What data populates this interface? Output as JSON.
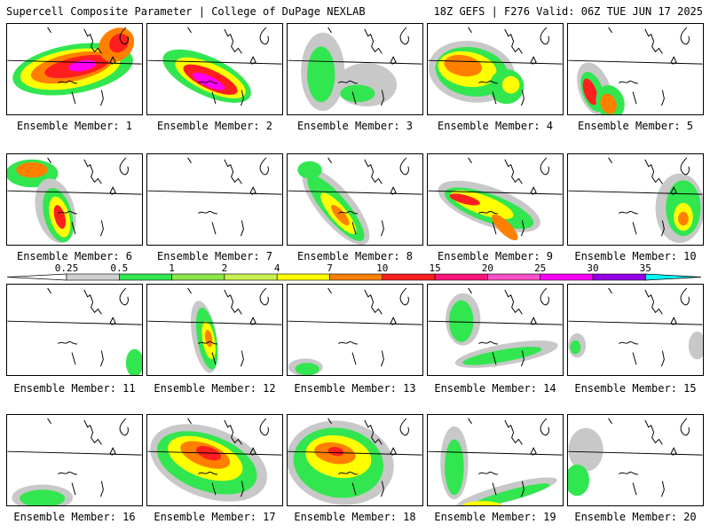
{
  "header": {
    "title_left": "Supercell Composite Parameter | College of DuPage NEXLAB",
    "title_right": "18Z GEFS | F276 Valid: 06Z TUE JUN 17 2025"
  },
  "colorbar": {
    "labels": [
      "0.25",
      "0.5",
      "1",
      "2",
      "4",
      "7",
      "10",
      "15",
      "20",
      "25",
      "30",
      "35"
    ],
    "colors": [
      "#d0d0d0",
      "#32e650",
      "#8ee64a",
      "#c9f050",
      "#ffff00",
      "#ff8000",
      "#ff1e1e",
      "#ff1478",
      "#ff50c8",
      "#ff00ff",
      "#9600e6",
      "#b450dc",
      "#00ffff"
    ]
  },
  "colors": {
    "light_gray": "#c8c8c8",
    "green": "#32e650",
    "lime": "#8ee64a",
    "yellow_green": "#c9f050",
    "yellow": "#ffff00",
    "orange": "#ff8000",
    "red": "#ff1e1e",
    "pink": "#ff1478",
    "magenta": "#ff00ff",
    "purple": "#9600e6"
  },
  "panels": [
    {
      "label": "Ensemble Member: 1",
      "intensity": 5
    },
    {
      "label": "Ensemble Member: 2",
      "intensity": 5
    },
    {
      "label": "Ensemble Member: 3",
      "intensity": 1
    },
    {
      "label": "Ensemble Member: 4",
      "intensity": 3
    },
    {
      "label": "Ensemble Member: 5",
      "intensity": 3
    },
    {
      "label": "Ensemble Member: 6",
      "intensity": 4
    },
    {
      "label": "Ensemble Member: 7",
      "intensity": 0
    },
    {
      "label": "Ensemble Member: 8",
      "intensity": 3
    },
    {
      "label": "Ensemble Member: 9",
      "intensity": 3
    },
    {
      "label": "Ensemble Member: 10",
      "intensity": 3
    },
    {
      "label": "Ensemble Member: 11",
      "intensity": 1
    },
    {
      "label": "Ensemble Member: 12",
      "intensity": 3
    },
    {
      "label": "Ensemble Member: 13",
      "intensity": 1
    },
    {
      "label": "Ensemble Member: 14",
      "intensity": 1
    },
    {
      "label": "Ensemble Member: 15",
      "intensity": 1
    },
    {
      "label": "Ensemble Member: 16",
      "intensity": 1
    },
    {
      "label": "Ensemble Member: 17",
      "intensity": 4
    },
    {
      "label": "Ensemble Member: 18",
      "intensity": 4
    },
    {
      "label": "Ensemble Member: 19",
      "intensity": 2
    },
    {
      "label": "Ensemble Member: 20",
      "intensity": 1
    }
  ]
}
